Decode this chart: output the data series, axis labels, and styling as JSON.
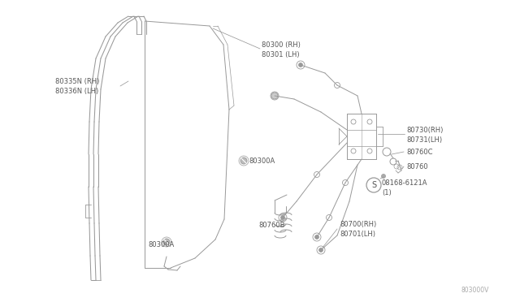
{
  "bg_color": "#ffffff",
  "line_color": "#999999",
  "text_color": "#555555",
  "fig_width": 6.4,
  "fig_height": 3.72,
  "dpi": 100,
  "diagram_code": "803000V",
  "fs": 6.0,
  "labels": {
    "80335N_RH": "80335N (RH)",
    "80336N_LH": "80336N (LH)",
    "80300_RH": "80300 (RH)",
    "80301_LH": "80301 (LH)",
    "80300A_mid": "80300A",
    "80300A_bot": "80300A",
    "80730_RH": "80730(RH)",
    "80731_LH": "80731(LH)",
    "80760C": "80760C",
    "80760": "80760",
    "08168": "08168-6121A",
    "08168_sub": "(1)",
    "80700_RH": "80700(RH)",
    "80701_LH": "80701(LH)",
    "80760B": "80760B"
  }
}
